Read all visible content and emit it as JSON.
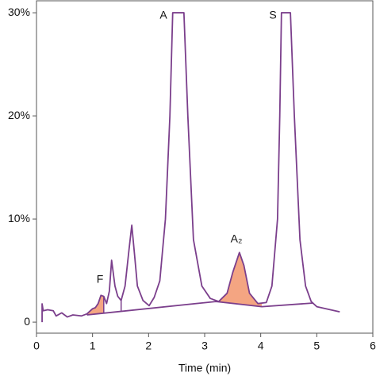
{
  "chart_data": {
    "type": "line",
    "xlabel": "Time (min)",
    "xlim": [
      0,
      6
    ],
    "xticks": [
      0,
      1,
      2,
      3,
      4,
      5,
      6
    ],
    "ylim": [
      -1.07,
      31.16
    ],
    "yticks": [
      0,
      {
        "value": 10,
        "label": "10%"
      },
      {
        "value": 20,
        "label": "20%"
      },
      {
        "value": 30,
        "label": "30%"
      }
    ],
    "series": [
      {
        "color": "#7b3f8c",
        "x": [
          0.1,
          0.1,
          0.12,
          0.2,
          0.3,
          0.35,
          0.45,
          0.55,
          0.65,
          0.8,
          0.9,
          1.0,
          1.05,
          1.1,
          1.15,
          1.2,
          1.25,
          1.3,
          1.34,
          1.4,
          1.45,
          1.51,
          1.58,
          1.65,
          1.7,
          1.75,
          1.8,
          1.9,
          2.01,
          2.1,
          2.2,
          2.3,
          2.38,
          2.43,
          2.63,
          2.7,
          2.8,
          2.95,
          3.1,
          3.25,
          3.4,
          3.5,
          3.62,
          3.7,
          3.8,
          3.95,
          4.1,
          4.2,
          4.3,
          4.34,
          4.37,
          4.53,
          4.6,
          4.7,
          4.8,
          4.9,
          5.0,
          5.41
        ],
        "values": [
          0,
          1.77,
          1.1,
          1.2,
          1.1,
          0.6,
          0.9,
          0.5,
          0.7,
          0.6,
          0.8,
          1.3,
          1.4,
          1.8,
          2.6,
          2.5,
          1.8,
          3.0,
          6.0,
          3.5,
          2.5,
          2.1,
          3.5,
          7.0,
          9.4,
          6.5,
          3.5,
          2.1,
          1.6,
          2.4,
          4.0,
          10.0,
          20.0,
          30.0,
          30.0,
          20.0,
          8.0,
          3.5,
          2.3,
          2.0,
          2.8,
          4.8,
          6.75,
          5.5,
          2.8,
          1.8,
          1.9,
          3.5,
          10.0,
          20.0,
          30.0,
          30.0,
          20.0,
          8.0,
          3.5,
          2.0,
          1.5,
          1.0
        ]
      },
      {
        "color": "#7b3f8c",
        "x": [
          0.9,
          3.2,
          4.02,
          4.94
        ],
        "values": [
          0.7,
          2.0,
          1.5,
          1.85
        ]
      }
    ],
    "shaded": [
      [
        0.88,
        1.2
      ],
      [
        3.2,
        4.02
      ]
    ],
    "shade_color": "#f4a582",
    "drop_lines": [
      1.2,
      1.51
    ],
    "annotations": [
      "F",
      "A",
      "S",
      "A₂"
    ]
  }
}
